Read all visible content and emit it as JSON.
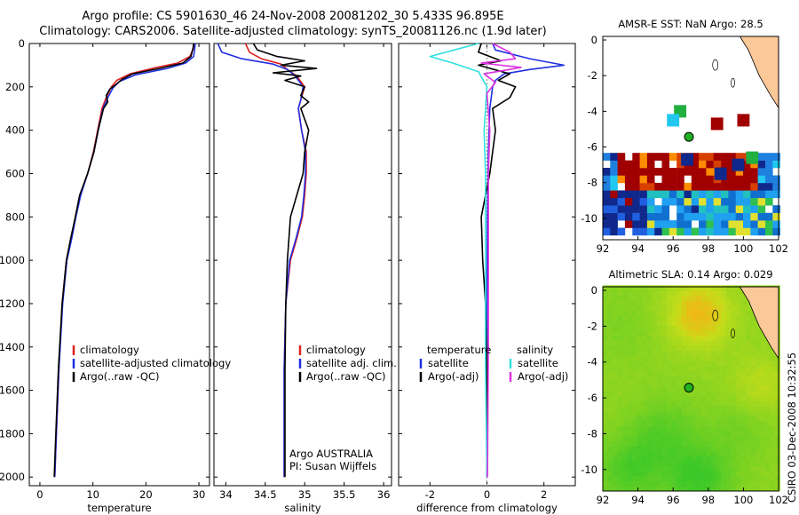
{
  "header": {
    "title_line1": "Argo profile: CS 5901630_46 24-Nov-2008 20081202_30 5.433S 96.895E",
    "title_line2": "Climatology: CARS2006. Satellite-adjusted climatology: synTS_20081126.nc (1.9d later)"
  },
  "side_label": "CSIRO 03-Dec-2008 10:32:55",
  "colors": {
    "climatology": "#e02020",
    "satellite": "#2030e0",
    "argo": "#000000",
    "sal_satellite": "#30e0e0",
    "sal_argo": "#e030e0",
    "land": "#fcc898",
    "marker": "#20b020"
  },
  "chart_data": [
    {
      "type": "line",
      "name": "temperature",
      "xlabel": "temperature",
      "xlim": [
        -2,
        32
      ],
      "ylim": [
        0,
        2040
      ],
      "xticks": [
        0,
        10,
        20,
        30
      ],
      "yticks": [
        0,
        200,
        400,
        600,
        800,
        1000,
        1200,
        1400,
        1600,
        1800,
        2000
      ],
      "legend_position": "lower-right",
      "legend": [
        "climatology",
        "satellite-adjusted climatology",
        "Argo(..raw -QC)"
      ],
      "series": [
        {
          "name": "climatology",
          "color": "#e02020",
          "x": [
            29.1,
            28.9,
            28.3,
            26.0,
            22.0,
            17.0,
            14.5,
            13.5,
            12.5,
            11.7,
            10.9,
            10.1,
            9.0,
            7.6,
            6.7,
            5.9,
            5.0,
            4.2,
            3.6,
            3.1,
            2.8
          ],
          "depth": [
            0,
            25,
            60,
            90,
            110,
            140,
            170,
            200,
            250,
            300,
            400,
            500,
            600,
            700,
            800,
            900,
            1000,
            1200,
            1500,
            1800,
            2000
          ]
        },
        {
          "name": "satellite-adjusted climatology",
          "color": "#2030e0",
          "x": [
            29.3,
            29.2,
            29.0,
            27.5,
            24.0,
            18.0,
            15.0,
            13.8,
            12.8,
            11.9,
            11.0,
            10.2,
            9.0,
            7.7,
            6.8,
            6.0,
            5.1,
            4.3,
            3.6,
            3.1,
            2.8
          ],
          "depth": [
            0,
            25,
            60,
            90,
            115,
            145,
            175,
            205,
            250,
            300,
            400,
            500,
            600,
            700,
            800,
            900,
            1000,
            1200,
            1500,
            1800,
            2000
          ]
        },
        {
          "name": "Argo(..raw -QC)",
          "color": "#000000",
          "x": [
            29.0,
            28.9,
            28.5,
            27.0,
            22.5,
            17.5,
            15.5,
            14.3,
            13.2,
            12.5,
            12.8,
            12.0,
            11.0,
            10.2,
            9.0,
            7.5,
            6.7,
            5.8,
            5.0,
            4.2,
            3.5,
            3.0,
            2.7
          ],
          "depth": [
            0,
            20,
            60,
            90,
            115,
            140,
            165,
            190,
            210,
            240,
            270,
            300,
            400,
            500,
            600,
            700,
            800,
            900,
            1000,
            1200,
            1500,
            1800,
            2000
          ]
        }
      ]
    },
    {
      "type": "line",
      "name": "salinity",
      "xlabel": "salinity",
      "xlim": [
        33.85,
        36.1
      ],
      "ylim": [
        0,
        2040
      ],
      "xticks": [
        34,
        34.5,
        35,
        35.5,
        36
      ],
      "yticks": [
        0,
        200,
        400,
        600,
        800,
        1000,
        1200,
        1400,
        1600,
        1800,
        2000
      ],
      "legend_position": "lower-right",
      "legend": [
        "climatology",
        "satellite adj. clim.",
        "Argo(..raw -QC)"
      ],
      "annotation": [
        "Argo AUSTRALIA",
        "PI: Susan Wijffels"
      ],
      "series": [
        {
          "name": "climatology",
          "color": "#e02020",
          "x": [
            34.25,
            34.3,
            34.45,
            34.7,
            34.78,
            34.9,
            35.0,
            34.95,
            34.92,
            34.96,
            35.02,
            35.02,
            35.0,
            34.97,
            34.9,
            34.82,
            34.76,
            34.74,
            34.74,
            34.74
          ],
          "depth": [
            0,
            40,
            70,
            95,
            120,
            150,
            200,
            260,
            300,
            400,
            500,
            600,
            700,
            800,
            900,
            1000,
            1200,
            1500,
            1800,
            2000
          ]
        },
        {
          "name": "satellite adj. clim.",
          "color": "#2030e0",
          "x": [
            33.9,
            33.95,
            34.2,
            34.6,
            34.78,
            34.88,
            34.98,
            34.95,
            34.92,
            34.96,
            35.01,
            35.01,
            34.99,
            34.96,
            34.89,
            34.81,
            34.76,
            34.74,
            34.74,
            34.74
          ],
          "depth": [
            0,
            40,
            70,
            95,
            120,
            150,
            200,
            260,
            300,
            400,
            500,
            600,
            700,
            800,
            900,
            1000,
            1200,
            1500,
            1800,
            2000
          ]
        },
        {
          "name": "Argo(..raw -QC)",
          "color": "#000000",
          "x": [
            34.35,
            34.4,
            34.65,
            35.0,
            34.7,
            35.15,
            34.6,
            34.95,
            34.75,
            35.0,
            34.95,
            35.05,
            34.95,
            35.05,
            35.0,
            34.98,
            34.9,
            34.82,
            34.78,
            34.76,
            34.75,
            34.75
          ],
          "depth": [
            0,
            30,
            60,
            80,
            100,
            115,
            135,
            150,
            170,
            200,
            240,
            270,
            300,
            400,
            500,
            600,
            700,
            800,
            1000,
            1200,
            1500,
            2000
          ]
        }
      ]
    },
    {
      "type": "line",
      "name": "difference",
      "xlabel": "difference from climatology",
      "xlim": [
        -3.1,
        3.1
      ],
      "ylim": [
        0,
        2040
      ],
      "xticks": [
        -2,
        0,
        2
      ],
      "yticks": [
        0,
        200,
        400,
        600,
        800,
        1000,
        1200,
        1400,
        1600,
        1800,
        2000
      ],
      "legend_position": "lower-center",
      "legend_headers": [
        "temperature",
        "salinity"
      ],
      "legend": [
        "satellite",
        "Argo(-adj)",
        "satellite",
        "Argo(-adj)"
      ],
      "series": [
        {
          "name": "temperature satellite",
          "color": "#2030e0",
          "x": [
            0.2,
            0.3,
            1.5,
            2.7,
            1.5,
            0.6,
            0.3,
            0.2,
            0.1,
            0.05,
            0.02,
            0.0,
            0.0
          ],
          "depth": [
            0,
            30,
            70,
            100,
            120,
            140,
            170,
            200,
            300,
            500,
            800,
            1200,
            2000
          ]
        },
        {
          "name": "temperature Argo(-adj)",
          "color": "#000000",
          "x": [
            -0.2,
            -0.3,
            0.5,
            -0.3,
            0.8,
            0.4,
            1.0,
            0.8,
            0.2,
            0.3,
            0.1,
            -0.2,
            -0.15,
            -0.05,
            0.0,
            0.0
          ],
          "depth": [
            0,
            40,
            80,
            100,
            140,
            170,
            200,
            250,
            300,
            400,
            600,
            800,
            1000,
            1200,
            1500,
            2000
          ]
        },
        {
          "name": "salinity satellite",
          "color": "#30e0e0",
          "x": [
            -0.3,
            -2.0,
            -1.2,
            -0.3,
            0.0,
            -0.1,
            -0.05,
            -0.05,
            -0.05,
            -0.05,
            0.0
          ],
          "depth": [
            0,
            60,
            90,
            130,
            200,
            400,
            600,
            800,
            1000,
            1500,
            2000
          ]
        },
        {
          "name": "salinity Argo(-adj)",
          "color": "#e030e0",
          "x": [
            0.2,
            0.8,
            1.0,
            -0.2,
            1.2,
            -0.1,
            0.3,
            0.0,
            0.1,
            0.05,
            0.05,
            0.05,
            0.02
          ],
          "depth": [
            0,
            40,
            70,
            90,
            110,
            140,
            180,
            230,
            400,
            600,
            900,
            1400,
            2000
          ]
        }
      ]
    },
    {
      "type": "heatmap",
      "name": "sst-map",
      "title": "AMSR-E SST: NaN Argo: 28.5",
      "xlim": [
        92,
        102
      ],
      "ylim": [
        -11.2,
        0.2
      ],
      "xticks": [
        92,
        94,
        96,
        98,
        100,
        102
      ],
      "yticks": [
        0,
        -2,
        -4,
        -6,
        -8,
        -10
      ],
      "argo_position": [
        96.9,
        -5.43
      ],
      "land": [
        [
          99.8,
          0.2
        ],
        [
          100.3,
          -0.6
        ],
        [
          100.9,
          -2.0
        ],
        [
          101.6,
          -3.2
        ],
        [
          102,
          -3.8
        ],
        [
          102,
          0.2
        ]
      ],
      "cells": [
        {
          "lon": 96.4,
          "lat": -4.0,
          "value": "green"
        },
        {
          "lon": 96.0,
          "lat": -4.5,
          "value": "cyan"
        },
        {
          "lon": 98.5,
          "lat": -4.7,
          "value": "darkred"
        },
        {
          "lon": 100.0,
          "lat": -4.5,
          "value": "darkred"
        },
        {
          "lon": 96.8,
          "lat": -6.7,
          "value": "navy"
        },
        {
          "lon": 100.5,
          "lat": -6.6,
          "value": "green"
        },
        {
          "lon": 99.7,
          "lat": -7.0,
          "value": "navy"
        },
        {
          "lon": 98.7,
          "lat": -7.5,
          "value": "navy"
        }
      ]
    },
    {
      "type": "heatmap",
      "name": "sla-map",
      "title": "Altimetric SLA: 0.14 Argo: 0.029",
      "xlim": [
        92,
        102
      ],
      "ylim": [
        -11.2,
        0.2
      ],
      "xticks": [
        92,
        94,
        96,
        98,
        100,
        102
      ],
      "yticks": [
        0,
        -2,
        -4,
        -6,
        -8,
        -10
      ],
      "argo_position": [
        96.9,
        -5.43
      ],
      "land": [
        [
          99.8,
          0.2
        ],
        [
          100.3,
          -0.6
        ],
        [
          100.9,
          -2.0
        ],
        [
          101.6,
          -3.2
        ],
        [
          102,
          -3.8
        ],
        [
          102,
          0.2
        ]
      ],
      "sla_blobs": [
        {
          "lon": 97.5,
          "lat": -1.3,
          "value": 0.22
        },
        {
          "lon": 93.0,
          "lat": -2.0,
          "value": 0.08
        },
        {
          "lon": 93.5,
          "lat": -10.0,
          "value": 0.02
        },
        {
          "lon": 97.5,
          "lat": -10.5,
          "value": 0.0
        },
        {
          "lon": 100.0,
          "lat": -7.5,
          "value": 0.06
        },
        {
          "lon": 95.5,
          "lat": -8.0,
          "value": 0.04
        },
        {
          "lon": 101.0,
          "lat": -5.5,
          "value": 0.16
        }
      ]
    }
  ]
}
